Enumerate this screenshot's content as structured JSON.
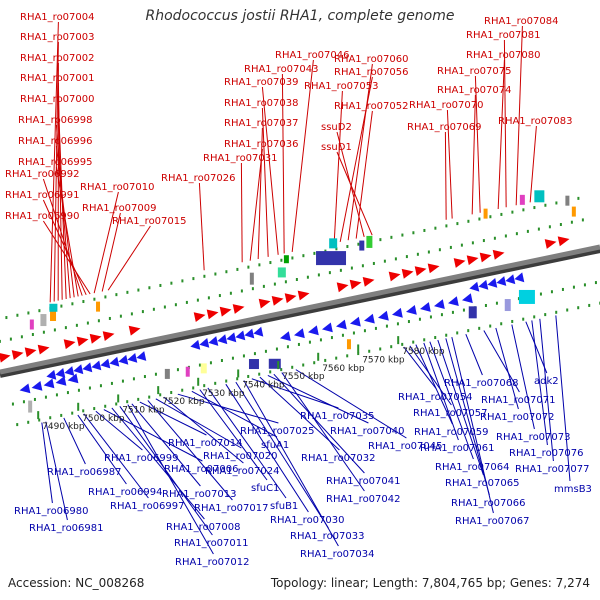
{
  "title": "Rhodococcus jostii RHA1, complete genome",
  "accession": "Accession: NC_008268",
  "summary": "Topology: linear; Length: 7,804,765 bp; Genes: 7,274",
  "colors": {
    "top_label": "#cc0000",
    "bottom_label": "#0000aa",
    "backbone": "#7f7f7f"
  },
  "ticks": [
    "7490 kbp",
    "7500 kbp",
    "7510 kbp",
    "7520 kbp",
    "7530 kbp",
    "7540 kbp",
    "7550 kbp",
    "7560 kbp",
    "7570 kbp",
    "7580 kbp"
  ],
  "top_genes": [
    "RHA1_ro07004",
    "RHA1_ro07003",
    "RHA1_ro07002",
    "RHA1_ro07001",
    "RHA1_ro07000",
    "RHA1_ro06998",
    "RHA1_ro06996",
    "RHA1_ro06995",
    "RHA1_ro06992",
    "RHA1_ro06991",
    "RHA1_ro06990",
    "RHA1_ro07010",
    "RHA1_ro07009",
    "RHA1_ro07015",
    "RHA1_ro07026",
    "RHA1_ro07031",
    "RHA1_ro07036",
    "RHA1_ro07037",
    "RHA1_ro07038",
    "RHA1_ro07039",
    "RHA1_ro07043",
    "RHA1_ro07046",
    "RHA1_ro07053",
    "RHA1_ro07056",
    "RHA1_ro07060",
    "RHA1_ro07052",
    "ssuD2",
    "ssuD1",
    "RHA1_ro07069",
    "RHA1_ro07070",
    "RHA1_ro07074",
    "RHA1_ro07075",
    "RHA1_ro07080",
    "RHA1_ro07081",
    "RHA1_ro07084",
    "RHA1_ro07083"
  ],
  "bottom_genes": [
    "RHA1_ro06980",
    "RHA1_ro06981",
    "RHA1_ro06987",
    "RHA1_ro06994",
    "RHA1_ro06997",
    "RHA1_ro06999",
    "RHA1_ro07006",
    "RHA1_ro07008",
    "RHA1_ro07011",
    "RHA1_ro07012",
    "RHA1_ro07013",
    "RHA1_ro07014",
    "RHA1_ro07017",
    "RHA1_ro07020",
    "RHA1_ro07024",
    "RHA1_ro07025",
    "sfuA1",
    "sfuC1",
    "sfuB1",
    "RHA1_ro07030",
    "RHA1_ro07033",
    "RHA1_ro07034",
    "RHA1_ro07035",
    "RHA1_ro07032",
    "RHA1_ro07040",
    "RHA1_ro07041",
    "RHA1_ro07042",
    "RHA1_ro07045",
    "RHA1_ro07054",
    "RHA1_ro07057",
    "RHA1_ro07059",
    "RHA1_ro07061",
    "RHA1_ro07064",
    "RHA1_ro07065",
    "RHA1_ro07066",
    "RHA1_ro07067",
    "RHA1_ro07068",
    "RHA1_ro07071",
    "RHA1_ro07072",
    "RHA1_ro07073",
    "adk2",
    "RHA1_ro07076",
    "RHA1_ro07077",
    "mmsB3"
  ]
}
